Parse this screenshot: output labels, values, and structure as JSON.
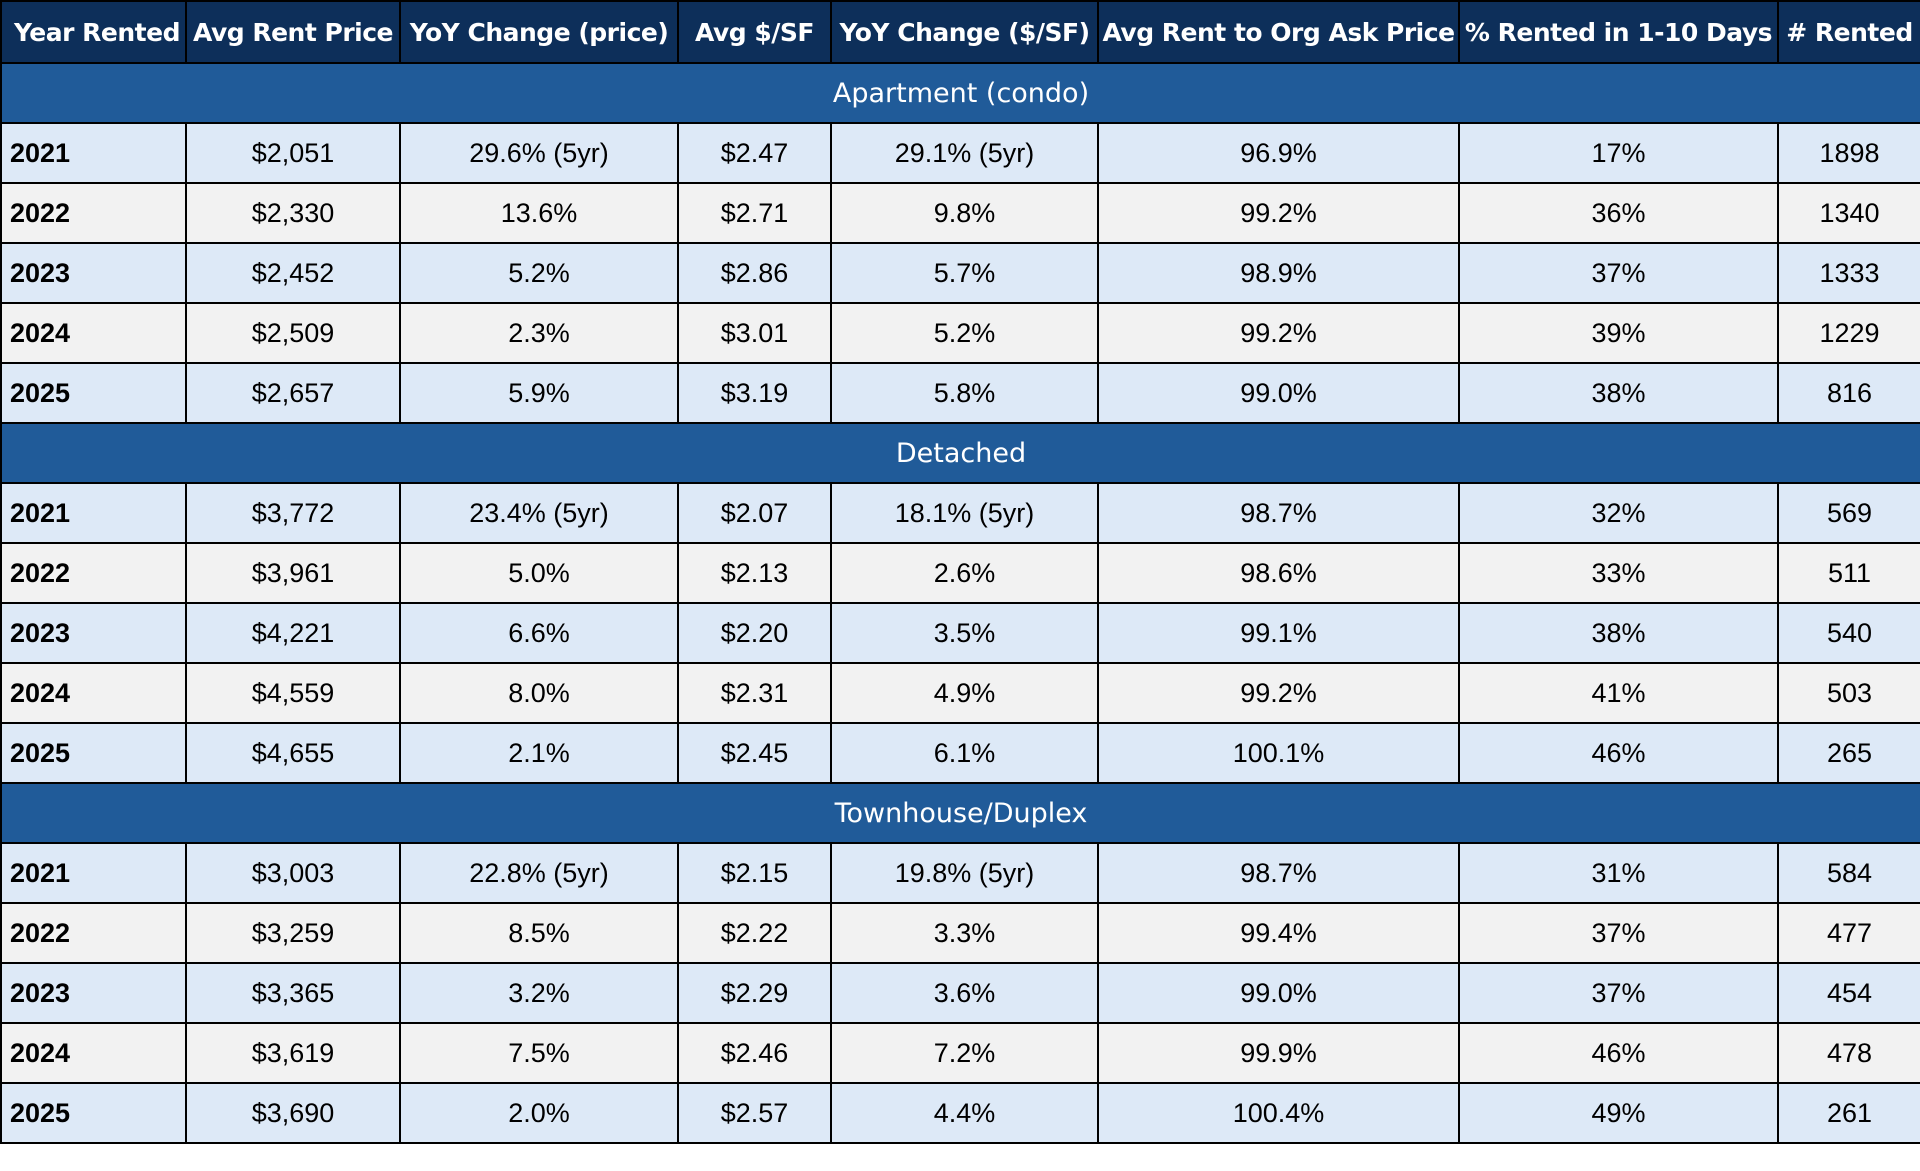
{
  "table": {
    "headers": [
      "Year Rented",
      "Avg Rent Price",
      "YoY Change (price)",
      "Avg $/SF",
      "YoY Change ($/SF)",
      "Avg Rent to Org Ask Price",
      "% Rented in 1-10 Days",
      "# Rented"
    ],
    "sections": [
      {
        "title": "Apartment (condo)",
        "rows": [
          [
            "2021",
            "$2,051",
            "29.6% (5yr)",
            "$2.47",
            "29.1% (5yr)",
            "96.9%",
            "17%",
            "1898"
          ],
          [
            "2022",
            "$2,330",
            "13.6%",
            "$2.71",
            "9.8%",
            "99.2%",
            "36%",
            "1340"
          ],
          [
            "2023",
            "$2,452",
            "5.2%",
            "$2.86",
            "5.7%",
            "98.9%",
            "37%",
            "1333"
          ],
          [
            "2024",
            "$2,509",
            "2.3%",
            "$3.01",
            "5.2%",
            "99.2%",
            "39%",
            "1229"
          ],
          [
            "2025",
            "$2,657",
            "5.9%",
            "$3.19",
            "5.8%",
            "99.0%",
            "38%",
            "816"
          ]
        ]
      },
      {
        "title": "Detached",
        "rows": [
          [
            "2021",
            "$3,772",
            "23.4% (5yr)",
            "$2.07",
            "18.1% (5yr)",
            "98.7%",
            "32%",
            "569"
          ],
          [
            "2022",
            "$3,961",
            "5.0%",
            "$2.13",
            "2.6%",
            "98.6%",
            "33%",
            "511"
          ],
          [
            "2023",
            "$4,221",
            "6.6%",
            "$2.20",
            "3.5%",
            "99.1%",
            "38%",
            "540"
          ],
          [
            "2024",
            "$4,559",
            "8.0%",
            "$2.31",
            "4.9%",
            "99.2%",
            "41%",
            "503"
          ],
          [
            "2025",
            "$4,655",
            "2.1%",
            "$2.45",
            "6.1%",
            "100.1%",
            "46%",
            "265"
          ]
        ]
      },
      {
        "title": "Townhouse/Duplex",
        "rows": [
          [
            "2021",
            "$3,003",
            "22.8% (5yr)",
            "$2.15",
            "19.8% (5yr)",
            "98.7%",
            "31%",
            "584"
          ],
          [
            "2022",
            "$3,259",
            "8.5%",
            "$2.22",
            "3.3%",
            "99.4%",
            "37%",
            "477"
          ],
          [
            "2023",
            "$3,365",
            "3.2%",
            "$2.29",
            "3.6%",
            "99.0%",
            "37%",
            "454"
          ],
          [
            "2024",
            "$3,619",
            "7.5%",
            "$2.46",
            "7.2%",
            "99.9%",
            "46%",
            "478"
          ],
          [
            "2025",
            "$3,690",
            "2.0%",
            "$2.57",
            "4.4%",
            "100.4%",
            "49%",
            "261"
          ]
        ]
      }
    ],
    "colors": {
      "header_bg": "#0d2f5a",
      "section_bg": "#205b99",
      "row_odd": "#dde9f7",
      "row_even": "#f2f2f2",
      "border": "#000000"
    }
  }
}
